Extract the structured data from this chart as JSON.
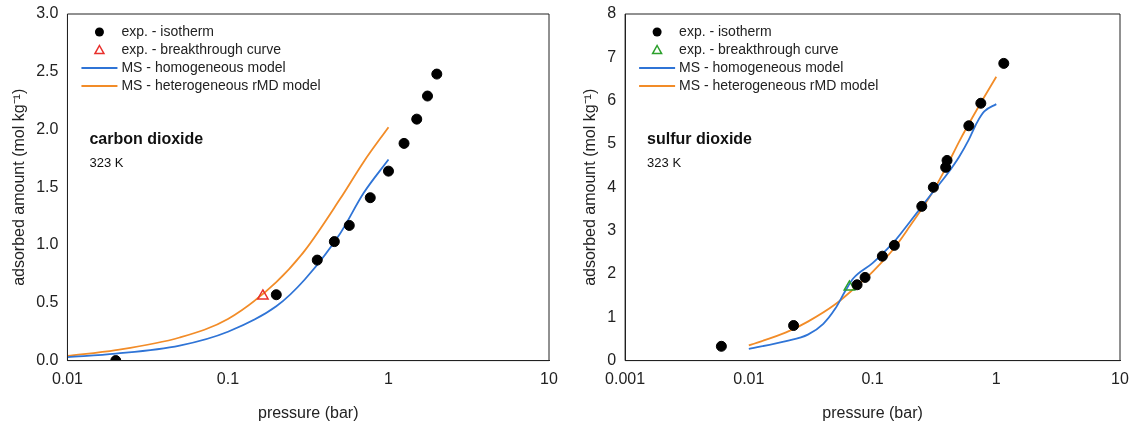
{
  "chart_data": [
    {
      "type": "scatter",
      "xlabel": "pressure (bar)",
      "ylabel": "adsorbed amount (mol kg⁻¹)",
      "log": "x",
      "grid": false,
      "legend": "top left",
      "xlim": [
        0.01,
        10
      ],
      "xticks": [
        0.01,
        0.1,
        1,
        10
      ],
      "ylim": [
        0,
        3
      ],
      "yticks": [
        {
          "value": 0,
          "label": "0.0"
        },
        {
          "value": 0.5,
          "label": "0.5"
        },
        {
          "value": 1,
          "label": "1.0"
        },
        {
          "value": 1.5,
          "label": "1.5"
        },
        {
          "value": 2,
          "label": "2.0"
        },
        {
          "value": 2.5,
          "label": "2.5"
        },
        {
          "value": 3,
          "label": "3.0"
        }
      ],
      "annotations": [
        "carbon dioxide",
        "323 K"
      ],
      "series": [
        {
          "name": "exp. - isotherm",
          "marker": "circle",
          "color": "#000000",
          "x": [
            0.02,
            0.2,
            0.36,
            0.46,
            0.57,
            0.77,
            1.0,
            1.25,
            1.5,
            1.75,
            2.0
          ],
          "values": [
            0.0,
            0.57,
            0.87,
            1.03,
            1.17,
            1.41,
            1.64,
            1.88,
            2.09,
            2.29,
            2.48
          ]
        },
        {
          "name": "exp. - breakthrough curve",
          "marker": "triangle",
          "color": "#e8302c",
          "x": [
            0.165
          ],
          "values": [
            0.56
          ]
        },
        {
          "name": "MS - homogeneous model",
          "type": "line",
          "marker": "none",
          "line_style": "solid",
          "color": "#2f74d6",
          "x": [
            0.01,
            0.02,
            0.05,
            0.1,
            0.2,
            0.3,
            0.5,
            0.7,
            1.0
          ],
          "values": [
            0.03,
            0.06,
            0.13,
            0.25,
            0.47,
            0.7,
            1.1,
            1.45,
            1.74
          ]
        },
        {
          "name": "MS - heterogeneous rMD model",
          "type": "line",
          "marker": "none",
          "line_style": "solid",
          "color": "#f28c28",
          "x": [
            0.01,
            0.02,
            0.05,
            0.1,
            0.2,
            0.3,
            0.5,
            0.7,
            1.0
          ],
          "values": [
            0.04,
            0.09,
            0.2,
            0.36,
            0.68,
            0.95,
            1.4,
            1.72,
            2.02
          ]
        }
      ]
    },
    {
      "type": "scatter",
      "xlabel": "pressure (bar)",
      "ylabel": "adsorbed amount (mol kg⁻¹)",
      "log": "x",
      "grid": false,
      "legend": "top left",
      "xlim": [
        0.001,
        10
      ],
      "xticks": [
        0.001,
        0.01,
        0.1,
        1,
        10
      ],
      "ylim": [
        0,
        8
      ],
      "yticks": [
        0,
        1,
        2,
        3,
        4,
        5,
        6,
        7,
        8
      ],
      "annotations": [
        "sulfur dioxide",
        "323 K"
      ],
      "series": [
        {
          "name": "exp. - isotherm",
          "marker": "circle",
          "color": "#000000",
          "x": [
            0.006,
            0.023,
            0.075,
            0.087,
            0.12,
            0.15,
            0.25,
            0.31,
            0.39,
            0.4,
            0.6,
            0.75,
            1.15
          ],
          "values": [
            0.33,
            0.81,
            1.75,
            1.92,
            2.41,
            2.66,
            3.56,
            4.0,
            4.46,
            4.62,
            5.42,
            5.94,
            6.86
          ]
        },
        {
          "name": "exp. - breakthrough curve",
          "marker": "triangle",
          "color": "#2ca02c",
          "x": [
            0.065
          ],
          "values": [
            1.7
          ]
        },
        {
          "name": "MS - homogeneous model",
          "type": "line",
          "marker": "none",
          "line_style": "solid",
          "color": "#2f74d6",
          "x": [
            0.01,
            0.02,
            0.03,
            0.04,
            0.05,
            0.06,
            0.07,
            0.1,
            0.15,
            0.2,
            0.3,
            0.4,
            0.5,
            0.6,
            0.7,
            0.8,
            1.0
          ],
          "values": [
            0.27,
            0.45,
            0.6,
            0.85,
            1.2,
            1.6,
            1.9,
            2.25,
            2.75,
            3.2,
            3.85,
            4.3,
            4.7,
            5.1,
            5.5,
            5.75,
            5.92
          ]
        },
        {
          "name": "MS - heterogeneous rMD model",
          "type": "line",
          "marker": "none",
          "line_style": "solid",
          "color": "#f28c28",
          "x": [
            0.01,
            0.02,
            0.03,
            0.05,
            0.07,
            0.1,
            0.15,
            0.2,
            0.3,
            0.4,
            0.5,
            0.7,
            1.0
          ],
          "values": [
            0.35,
            0.65,
            0.9,
            1.3,
            1.65,
            2.05,
            2.6,
            3.1,
            3.85,
            4.5,
            5.05,
            5.8,
            6.55
          ]
        }
      ]
    }
  ]
}
